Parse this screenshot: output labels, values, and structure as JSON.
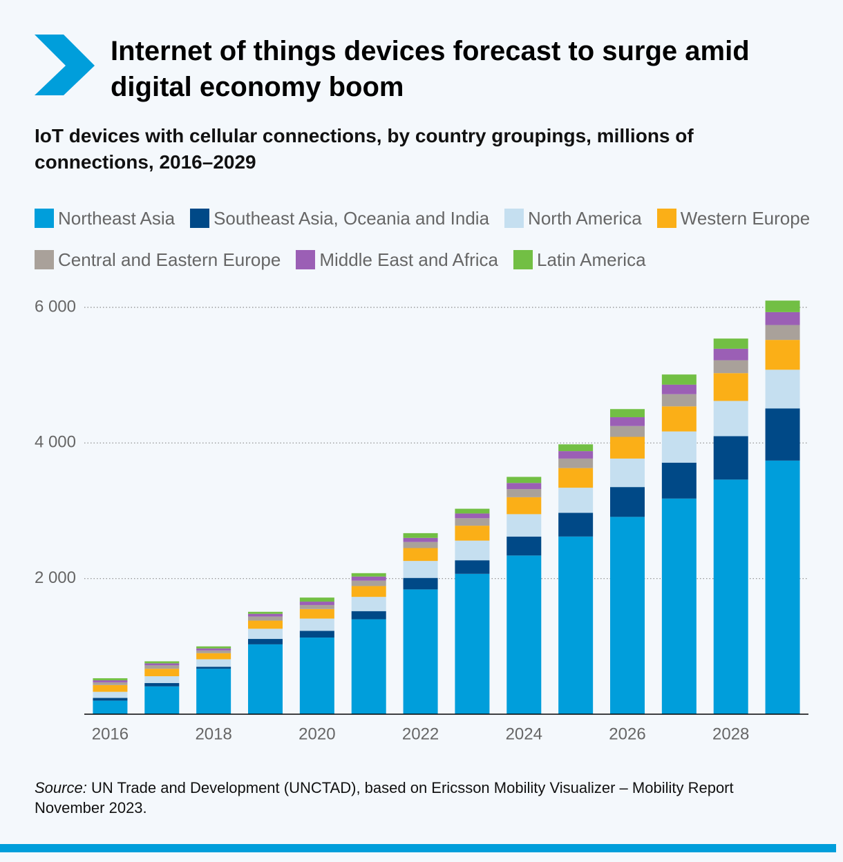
{
  "chart_data": {
    "type": "stacked-bar",
    "title": "Internet of things devices forecast to surge amid digital economy boom",
    "subtitle": "IoT devices with cellular connections, by country groupings, millions of connections, 2016–2029",
    "source_label": "Source:",
    "source": "UN Trade and Development (UNCTAD), based on Ericsson Mobility Visualizer – Mobility Report November 2023.",
    "x": [
      2016,
      2017,
      2018,
      2019,
      2020,
      2021,
      2022,
      2023,
      2024,
      2025,
      2026,
      2027,
      2028,
      2029
    ],
    "xlim": [
      2015.5,
      2029.5
    ],
    "xticks": [
      2016,
      2018,
      2020,
      2022,
      2024,
      2026,
      2028
    ],
    "ylim": [
      0,
      6000
    ],
    "yticks": [
      {
        "value": 2000,
        "label": "2 000"
      },
      {
        "value": 4000,
        "label": "4 000"
      },
      {
        "value": 6000,
        "label": "6 000"
      }
    ],
    "grid": true,
    "series": [
      {
        "name": "Northeast Asia",
        "color": "#009edb",
        "values": [
          200,
          410,
          670,
          1030,
          1130,
          1400,
          1840,
          2070,
          2340,
          2620,
          2910,
          3180,
          3460,
          3740
        ]
      },
      {
        "name": "Southeast Asia, Oceania and India",
        "color": "#004987",
        "values": [
          40,
          50,
          30,
          80,
          100,
          120,
          170,
          200,
          280,
          350,
          440,
          530,
          640,
          770
        ]
      },
      {
        "name": "North America",
        "color": "#c5dff0",
        "values": [
          90,
          100,
          110,
          150,
          180,
          210,
          250,
          290,
          330,
          370,
          420,
          460,
          520,
          570
        ]
      },
      {
        "name": "Western Europe",
        "color": "#fbaf17",
        "values": [
          100,
          110,
          90,
          120,
          140,
          160,
          190,
          220,
          250,
          290,
          320,
          370,
          410,
          440
        ]
      },
      {
        "name": "Central and Eastern Europe",
        "color": "#a9a19a",
        "values": [
          40,
          50,
          40,
          60,
          60,
          80,
          90,
          110,
          120,
          140,
          160,
          180,
          190,
          220
        ]
      },
      {
        "name": "Middle East and Africa",
        "color": "#9b5fb5",
        "values": [
          30,
          30,
          30,
          40,
          50,
          60,
          60,
          70,
          90,
          110,
          130,
          140,
          170,
          190
        ]
      },
      {
        "name": "Latin America",
        "color": "#72bf44",
        "values": [
          30,
          30,
          30,
          30,
          60,
          50,
          70,
          70,
          90,
          100,
          120,
          150,
          150,
          170
        ]
      }
    ]
  }
}
